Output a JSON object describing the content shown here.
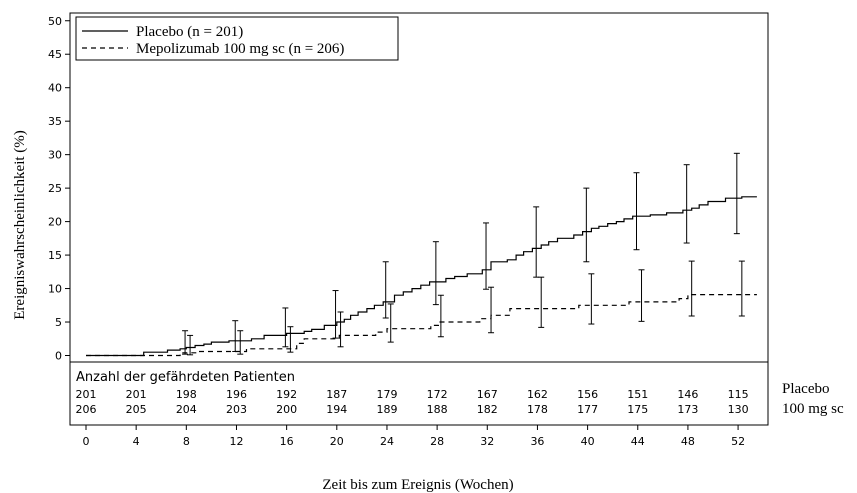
{
  "chart_data": {
    "type": "line",
    "subtype": "kaplan-meier step curve with confidence-interval error bars",
    "xlabel": "Zeit bis zum Ereignis (Wochen)",
    "ylabel": "Ereigniswahrscheinlichkeit (%)",
    "xlim": [
      0,
      52
    ],
    "ylim": [
      0,
      50
    ],
    "xticks": [
      "0",
      "4",
      "8",
      "12",
      "16",
      "20",
      "24",
      "28",
      "32",
      "36",
      "40",
      "44",
      "48",
      "52"
    ],
    "yticks": [
      "0",
      "5",
      "10",
      "15",
      "20",
      "25",
      "30",
      "35",
      "40",
      "45",
      "50"
    ],
    "grid": false,
    "legend_position": "top-left",
    "series": [
      {
        "name": "Placebo (n = 201)",
        "line_style": "solid",
        "x": [
          0,
          4.6,
          6.5,
          7.5,
          8.0,
          8.7,
          9.4,
          10.0,
          11.4,
          13.2,
          14.2,
          16.0,
          17.4,
          18.0,
          19.0,
          20.0,
          20.6,
          21.1,
          21.7,
          22.4,
          23.0,
          23.7,
          24.6,
          25.3,
          26.0,
          26.7,
          27.4,
          28.7,
          29.4,
          30.4,
          31.6,
          32.3,
          33.6,
          34.3,
          34.9,
          35.6,
          36.3,
          36.9,
          37.6,
          38.9,
          39.6,
          40.3,
          40.9,
          41.6,
          42.3,
          42.9,
          43.6,
          45.0,
          46.3,
          47.6,
          48.3,
          48.9,
          49.6,
          51.0,
          52.3,
          53.5
        ],
        "y": [
          0,
          0.5,
          0.8,
          1.0,
          1.2,
          1.5,
          1.7,
          2.0,
          2.2,
          2.5,
          3.0,
          3.3,
          3.6,
          3.9,
          4.5,
          5.0,
          5.4,
          6.0,
          6.5,
          7.0,
          7.5,
          8.0,
          9.0,
          9.5,
          10.0,
          10.5,
          11.0,
          11.5,
          11.8,
          12.2,
          12.8,
          14.0,
          14.3,
          15.0,
          15.5,
          16.0,
          16.5,
          17.0,
          17.5,
          18.0,
          18.5,
          19.0,
          19.3,
          19.7,
          20.0,
          20.4,
          20.8,
          21.0,
          21.3,
          21.7,
          22.0,
          22.5,
          23.0,
          23.5,
          23.7,
          23.7
        ],
        "error_bars": [
          {
            "x": 7.9,
            "y": 1.0,
            "low": 0.2,
            "high": 3.7
          },
          {
            "x": 11.9,
            "y": 2.0,
            "low": 0.6,
            "high": 5.2
          },
          {
            "x": 15.9,
            "y": 3.3,
            "low": 1.3,
            "high": 7.1
          },
          {
            "x": 19.9,
            "y": 5.0,
            "low": 2.6,
            "high": 9.7
          },
          {
            "x": 23.9,
            "y": 9.0,
            "low": 5.6,
            "high": 14.0
          },
          {
            "x": 27.9,
            "y": 11.5,
            "low": 7.6,
            "high": 17.0
          },
          {
            "x": 31.9,
            "y": 14.0,
            "low": 9.9,
            "high": 19.8
          },
          {
            "x": 35.9,
            "y": 16.0,
            "low": 11.7,
            "high": 22.2
          },
          {
            "x": 39.9,
            "y": 19.0,
            "low": 14.0,
            "high": 25.0
          },
          {
            "x": 43.9,
            "y": 21.0,
            "low": 15.8,
            "high": 27.3
          },
          {
            "x": 47.9,
            "y": 22.0,
            "low": 16.8,
            "high": 28.5
          },
          {
            "x": 51.9,
            "y": 23.7,
            "low": 18.2,
            "high": 30.2
          }
        ]
      },
      {
        "name": "Mepolizumab 100 mg sc (n = 206)",
        "line_style": "dashed",
        "x": [
          0,
          7.5,
          9.0,
          12.8,
          16.8,
          17.4,
          20.2,
          23.1,
          24.0,
          27.5,
          28.1,
          31.4,
          32.3,
          33.8,
          39.3,
          43.3,
          47.3,
          48.0,
          53.5
        ],
        "y": [
          0,
          0.4,
          0.6,
          1.0,
          1.8,
          2.5,
          3.0,
          3.5,
          4.0,
          4.5,
          5.0,
          5.5,
          6.0,
          7.0,
          7.5,
          8.0,
          8.5,
          9.1,
          9.1
        ],
        "error_bars": [
          {
            "x": 8.3,
            "y": 0.5,
            "low": 0.1,
            "high": 3.0
          },
          {
            "x": 12.3,
            "y": 1.0,
            "low": 0.2,
            "high": 3.7
          },
          {
            "x": 16.3,
            "y": 1.8,
            "low": 0.5,
            "high": 4.3
          },
          {
            "x": 20.3,
            "y": 3.0,
            "low": 1.3,
            "high": 6.5
          },
          {
            "x": 24.3,
            "y": 4.0,
            "low": 2.0,
            "high": 7.7
          },
          {
            "x": 28.3,
            "y": 5.0,
            "low": 2.8,
            "high": 9.0
          },
          {
            "x": 32.3,
            "y": 6.0,
            "low": 3.4,
            "high": 10.2
          },
          {
            "x": 36.3,
            "y": 7.0,
            "low": 4.2,
            "high": 11.7
          },
          {
            "x": 40.3,
            "y": 7.5,
            "low": 4.7,
            "high": 12.2
          },
          {
            "x": 44.3,
            "y": 8.0,
            "low": 5.1,
            "high": 12.8
          },
          {
            "x": 48.3,
            "y": 9.1,
            "low": 5.9,
            "high": 14.1
          },
          {
            "x": 52.3,
            "y": 9.1,
            "low": 5.9,
            "high": 14.1
          }
        ]
      }
    ],
    "risk_table": {
      "title": "Anzahl der gefährdeten Patienten",
      "weeks": [
        0,
        4,
        8,
        12,
        16,
        20,
        24,
        28,
        32,
        36,
        40,
        44,
        48,
        52
      ],
      "rows": [
        {
          "label": "Placebo",
          "values": [
            "201",
            "201",
            "198",
            "196",
            "192",
            "187",
            "179",
            "172",
            "167",
            "162",
            "156",
            "151",
            "146",
            "115"
          ]
        },
        {
          "label": "100 mg sc",
          "values": [
            "206",
            "205",
            "204",
            "203",
            "200",
            "194",
            "189",
            "188",
            "182",
            "178",
            "177",
            "175",
            "173",
            "130"
          ]
        }
      ]
    }
  }
}
